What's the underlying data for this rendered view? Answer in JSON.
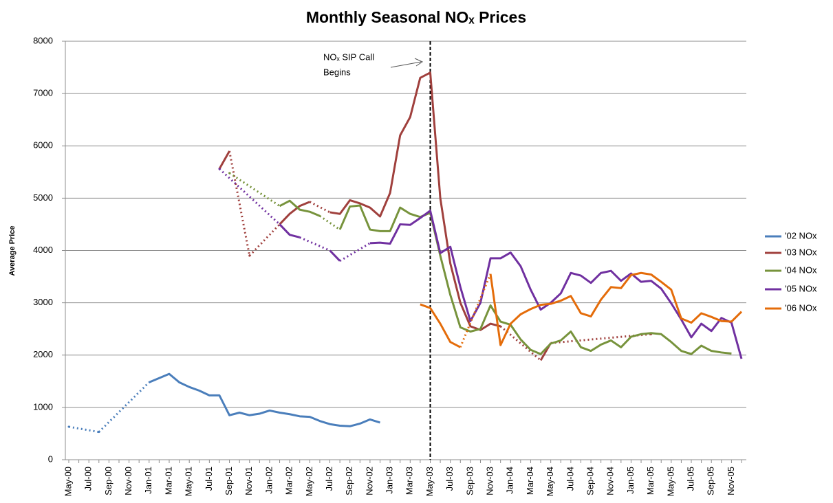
{
  "chart_data": {
    "type": "line",
    "title": "Monthly Seasonal NOₓ Prices",
    "y_label": "Average Price",
    "annotation": {
      "text": [
        "NOₓ SIP Call",
        "Begins"
      ],
      "category": "May-03"
    },
    "categories": [
      "May-00",
      null,
      "Jul-00",
      null,
      "Sep-00",
      null,
      "Nov-00",
      null,
      "Jan-01",
      null,
      "Mar-01",
      null,
      "May-01",
      null,
      "Jul-01",
      null,
      "Sep-01",
      null,
      "Nov-01",
      null,
      "Jan-02",
      null,
      "Mar-02",
      null,
      "May-02",
      null,
      "Jul-02",
      null,
      "Sep-02",
      null,
      "Nov-02",
      null,
      "Jan-03",
      null,
      "Mar-03",
      null,
      "May-03",
      null,
      "Jul-03",
      null,
      "Sep-03",
      null,
      "Nov-03",
      null,
      "Jan-04",
      null,
      "Mar-04",
      null,
      "May-04",
      null,
      "Jul-04",
      null,
      "Sep-04",
      null,
      "Nov-04",
      null,
      "Jan-05",
      null,
      "Mar-05",
      null,
      "May-05",
      null,
      "Jul-05",
      null,
      "Sep-05",
      null,
      "Nov-05",
      null
    ],
    "ylim": [
      0,
      8000
    ],
    "yticks": [
      0,
      1000,
      2000,
      3000,
      4000,
      5000,
      6000,
      7000,
      8000
    ],
    "grid": true,
    "legend": "right",
    "series": [
      {
        "name": "'02 NOx",
        "color": "#4a7ebb",
        "values": [
          630,
          null,
          null,
          530,
          null,
          null,
          null,
          null,
          1480,
          1560,
          1640,
          1480,
          1390,
          1320,
          1230,
          1230,
          850,
          900,
          850,
          880,
          940,
          900,
          870,
          830,
          820,
          740,
          680,
          650,
          640,
          690,
          770,
          710,
          null,
          null,
          null,
          null,
          null,
          null,
          null,
          null,
          null,
          null,
          null,
          null,
          null,
          null,
          null,
          null,
          null,
          null,
          null,
          null,
          null,
          null,
          null,
          null,
          null,
          null,
          null,
          null,
          null,
          null,
          null,
          null,
          null,
          null,
          null,
          null
        ]
      },
      {
        "name": "'03 NOx",
        "color": "#a0403d",
        "values": [
          null,
          null,
          null,
          null,
          null,
          null,
          null,
          null,
          null,
          null,
          null,
          null,
          null,
          null,
          null,
          5560,
          5900,
          null,
          3900,
          null,
          null,
          4500,
          4700,
          4850,
          4930,
          null,
          4730,
          4700,
          4960,
          4900,
          4820,
          4650,
          5100,
          6200,
          6550,
          7300,
          7400,
          5000,
          3750,
          3000,
          2550,
          2480,
          2600,
          2550,
          null,
          null,
          null,
          1900,
          2230,
          null,
          null,
          null,
          null,
          null,
          null,
          null,
          null,
          null,
          2400,
          null,
          null,
          null,
          null,
          null,
          null,
          null,
          null,
          null
        ]
      },
      {
        "name": "'04 NOx",
        "color": "#77933c",
        "values": [
          null,
          null,
          null,
          null,
          null,
          null,
          null,
          null,
          null,
          null,
          null,
          null,
          null,
          null,
          null,
          null,
          5480,
          null,
          null,
          null,
          null,
          4850,
          4950,
          4780,
          4740,
          4660,
          null,
          4400,
          4840,
          4860,
          4400,
          4370,
          4370,
          4820,
          4700,
          4640,
          4720,
          3900,
          3150,
          2530,
          2450,
          2500,
          2950,
          2640,
          2580,
          2300,
          2100,
          2020,
          2220,
          2280,
          2450,
          2150,
          2080,
          2200,
          2280,
          2150,
          2350,
          2400,
          2420,
          2400,
          2250,
          2080,
          2020,
          2180,
          2080,
          2050,
          2030,
          null
        ]
      },
      {
        "name": "'05 NOx",
        "color": "#7030a0",
        "values": [
          null,
          null,
          null,
          null,
          null,
          null,
          null,
          null,
          null,
          null,
          null,
          null,
          null,
          null,
          null,
          5560,
          null,
          null,
          null,
          null,
          null,
          4500,
          4300,
          4250,
          null,
          null,
          4000,
          3800,
          null,
          null,
          4140,
          4150,
          4130,
          4500,
          4490,
          4620,
          4760,
          3950,
          4070,
          3300,
          2650,
          3000,
          3850,
          3850,
          3960,
          3700,
          3250,
          2870,
          3000,
          3180,
          3570,
          3520,
          3380,
          3570,
          3610,
          3420,
          3560,
          3400,
          3420,
          3270,
          2990,
          2680,
          2340,
          2600,
          2460,
          2710,
          2620,
          1930
        ]
      },
      {
        "name": "'06 NOx",
        "color": "#e46c0a",
        "values": [
          null,
          null,
          null,
          null,
          null,
          null,
          null,
          null,
          null,
          null,
          null,
          null,
          null,
          null,
          null,
          null,
          null,
          null,
          null,
          null,
          null,
          null,
          null,
          null,
          null,
          null,
          null,
          null,
          null,
          null,
          null,
          null,
          null,
          null,
          null,
          2970,
          2900,
          2600,
          2250,
          2150,
          null,
          null,
          3550,
          2190,
          2600,
          2780,
          2880,
          2960,
          2980,
          3040,
          3130,
          2800,
          2740,
          3060,
          3300,
          3280,
          3530,
          3570,
          3540,
          3400,
          3250,
          2700,
          2620,
          2800,
          2730,
          2650,
          2640,
          2830
        ]
      }
    ]
  }
}
